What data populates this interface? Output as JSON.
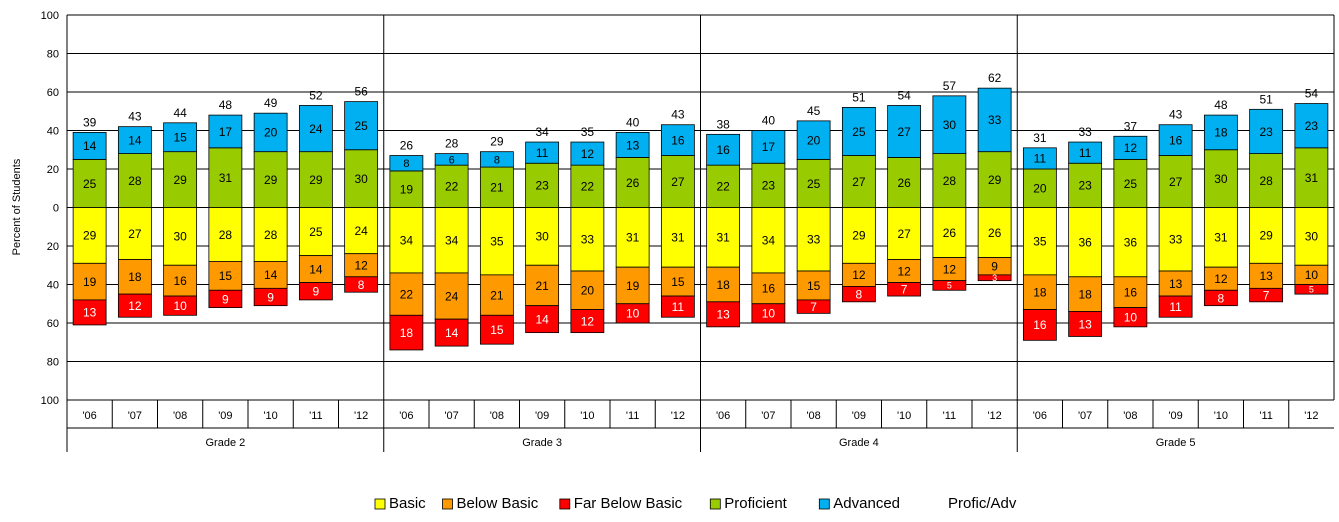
{
  "chart_data": {
    "type": "bar",
    "subtype": "diverging-stacked",
    "ylabel": "Percent of Students",
    "y_ticks": [
      "100",
      "80",
      "60",
      "40",
      "20",
      "0",
      "20",
      "40",
      "60",
      "80",
      "100"
    ],
    "ylim": [
      -100,
      100
    ],
    "grid": true,
    "legend_position": "bottom",
    "series": [
      {
        "name": "Basic",
        "color": "#FFFF00",
        "direction": "down"
      },
      {
        "name": "Below Basic",
        "color": "#FF9900",
        "direction": "down"
      },
      {
        "name": "Far Below Basic",
        "color": "#FF0000",
        "direction": "down"
      },
      {
        "name": "Proficient",
        "color": "#99CC00",
        "direction": "up"
      },
      {
        "name": "Advanced",
        "color": "#00B0F0",
        "direction": "up"
      }
    ],
    "total_series_name": "Profic/Adv",
    "groups": [
      {
        "name": "Grade 2",
        "years": [
          "'06",
          "'07",
          "'08",
          "'09",
          "'10",
          "'11",
          "'12"
        ],
        "basic": [
          29,
          27,
          30,
          28,
          28,
          25,
          24
        ],
        "below_basic": [
          19,
          18,
          16,
          15,
          14,
          14,
          12
        ],
        "far_below_basic": [
          13,
          12,
          10,
          9,
          9,
          9,
          8
        ],
        "proficient": [
          25,
          28,
          29,
          31,
          29,
          29,
          30
        ],
        "advanced": [
          14,
          14,
          15,
          17,
          20,
          24,
          25
        ],
        "profic_adv": [
          39,
          43,
          44,
          48,
          49,
          52,
          56
        ]
      },
      {
        "name": "Grade 3",
        "years": [
          "'06",
          "'07",
          "'08",
          "'09",
          "'10",
          "'11",
          "'12"
        ],
        "basic": [
          34,
          34,
          35,
          30,
          33,
          31,
          31
        ],
        "below_basic": [
          22,
          24,
          21,
          21,
          20,
          19,
          15
        ],
        "far_below_basic": [
          18,
          14,
          15,
          14,
          12,
          10,
          11
        ],
        "proficient": [
          19,
          22,
          21,
          23,
          22,
          26,
          27
        ],
        "advanced": [
          8,
          6,
          8,
          11,
          12,
          13,
          16
        ],
        "profic_adv": [
          26,
          28,
          29,
          34,
          35,
          40,
          43
        ]
      },
      {
        "name": "Grade 4",
        "years": [
          "'06",
          "'07",
          "'08",
          "'09",
          "'10",
          "'11",
          "'12"
        ],
        "basic": [
          31,
          34,
          33,
          29,
          27,
          26,
          26
        ],
        "below_basic": [
          18,
          16,
          15,
          12,
          12,
          12,
          9
        ],
        "far_below_basic": [
          13,
          10,
          7,
          8,
          7,
          5,
          3
        ],
        "proficient": [
          22,
          23,
          25,
          27,
          26,
          28,
          29
        ],
        "advanced": [
          16,
          17,
          20,
          25,
          27,
          30,
          33
        ],
        "profic_adv": [
          38,
          40,
          45,
          51,
          54,
          57,
          62
        ]
      },
      {
        "name": "Grade 5",
        "years": [
          "'06",
          "'07",
          "'08",
          "'09",
          "'10",
          "'11",
          "'12"
        ],
        "basic": [
          35,
          36,
          36,
          33,
          31,
          29,
          30
        ],
        "below_basic": [
          18,
          18,
          16,
          13,
          12,
          13,
          10
        ],
        "far_below_basic": [
          16,
          13,
          10,
          11,
          8,
          7,
          5
        ],
        "proficient": [
          20,
          23,
          25,
          27,
          30,
          28,
          31
        ],
        "advanced": [
          11,
          11,
          12,
          16,
          18,
          23,
          23
        ],
        "profic_adv": [
          31,
          33,
          37,
          43,
          48,
          51,
          54
        ]
      }
    ]
  }
}
